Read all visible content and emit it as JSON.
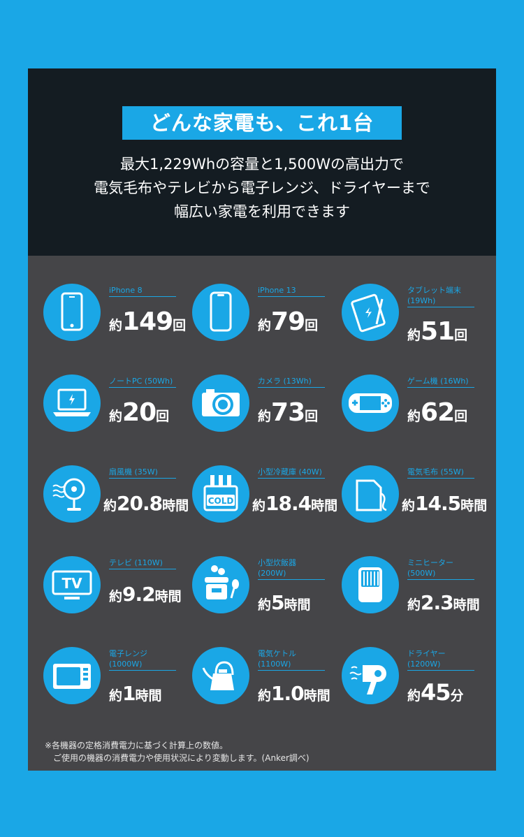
{
  "title": "どんな家電も、これ1台",
  "subtitle": [
    "最大1,229Whの容量と1,500Wの高出力で",
    "電気毛布やテレビから電子レンジ、ドライヤーまで",
    "幅広い家電を利用できます"
  ],
  "items": [
    {
      "label": "iPhone 8",
      "label2": "",
      "prefix": "約",
      "number": "149",
      "suffix": "回",
      "icon": "smartphone-icon"
    },
    {
      "label": "iPhone 13",
      "label2": "",
      "prefix": "約",
      "number": "79",
      "suffix": "回",
      "icon": "smartphone-notch-icon"
    },
    {
      "label": "タブレット端末",
      "label2": "(19Wh)",
      "prefix": "約",
      "number": "51",
      "suffix": "回",
      "icon": "tablet-icon"
    },
    {
      "label": "ノートPC (50Wh)",
      "label2": "",
      "prefix": "約",
      "number": "20",
      "suffix": "回",
      "icon": "laptop-icon"
    },
    {
      "label": "カメラ (13Wh)",
      "label2": "",
      "prefix": "約",
      "number": "73",
      "suffix": "回",
      "icon": "camera-icon"
    },
    {
      "label": "ゲーム機 (16Wh)",
      "label2": "",
      "prefix": "約",
      "number": "62",
      "suffix": "回",
      "icon": "game-console-icon"
    },
    {
      "label": "扇風機 (35W)",
      "label2": "",
      "prefix": "約",
      "number": "20.8",
      "suffix": "時間",
      "icon": "fan-icon"
    },
    {
      "label": "小型冷蔵庫 (40W)",
      "label2": "",
      "prefix": "約",
      "number": "18.4",
      "suffix": "時間",
      "icon": "cooler-icon",
      "icon_text": "COLD"
    },
    {
      "label": "電気毛布 (55W)",
      "label2": "",
      "prefix": "約",
      "number": "14.5",
      "suffix": "時間",
      "icon": "electric-blanket-icon"
    },
    {
      "label": "テレビ (110W)",
      "label2": "",
      "prefix": "約",
      "number": "9.2",
      "suffix": "時間",
      "icon": "tv-icon",
      "icon_text": "TV"
    },
    {
      "label": "小型炊飯器",
      "label2": "(200W)",
      "prefix": "約",
      "number": "5",
      "suffix": "時間",
      "icon": "rice-cooker-icon"
    },
    {
      "label": "ミニヒーター",
      "label2": "(500W)",
      "prefix": "約",
      "number": "2.3",
      "suffix": "時間",
      "icon": "heater-icon"
    },
    {
      "label": "電子レンジ",
      "label2": "(1000W)",
      "prefix": "約",
      "number": "1",
      "suffix": "時間",
      "icon": "microwave-icon"
    },
    {
      "label": "電気ケトル",
      "label2": "(1100W)",
      "prefix": "約",
      "number": "1.0",
      "suffix": "時間",
      "icon": "kettle-icon"
    },
    {
      "label": "ドライヤー",
      "label2": "(1200W)",
      "prefix": "約",
      "number": "45",
      "suffix": "分",
      "icon": "hair-dryer-icon"
    }
  ],
  "footnote": [
    "※各機器の定格消費電力に基づく計算上の数値。",
    "　ご使用の機器の消費電力や使用状況により変動します。(Anker調べ)"
  ],
  "colors": {
    "background": "#1aa7e6",
    "header": "#141c22",
    "panel": "#454548",
    "accent": "#1aa7e6",
    "text": "#ffffff"
  }
}
